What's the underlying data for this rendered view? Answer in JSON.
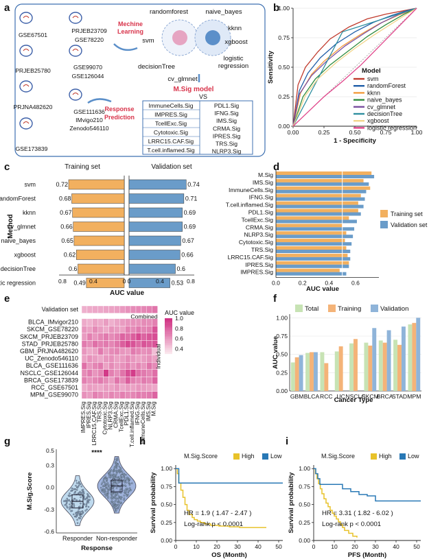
{
  "panel_labels": [
    "a",
    "b",
    "c",
    "d",
    "e",
    "f",
    "g",
    "h",
    "i"
  ],
  "panel_a": {
    "datasets": [
      "GSE67501",
      "PRJEB23709",
      "GSE78220",
      "PRJEB25780",
      "GSE99070",
      "GSE126044",
      "PRJNA482620",
      "GSE111636",
      "IMvigo210",
      "Zenodo546110",
      "GSE173839"
    ],
    "ml_title": [
      "Mechine",
      "Learning"
    ],
    "methods": [
      "randomforest",
      "naive_bayes",
      "svm",
      "kknn",
      "xgboost",
      "decisionTree",
      "logistic",
      "regression",
      "cv_glmnet"
    ],
    "msig_title": "M.Sig model",
    "vs": "VS",
    "rp_title": [
      "Response",
      "Prediction"
    ],
    "sig_left": [
      "ImmuneCells.Sig",
      "IMPRES.Sig",
      "TcellExc.Sig",
      "Cytotoxic.Sig",
      "LRRC15.CAF.Sig",
      "T.cell.inflamed.Sig"
    ],
    "sig_right": [
      "PDL1.Sig",
      "IFNG.Sig",
      "IMS.Sig",
      "CRMA.Sig",
      "IPRES.Sig",
      "TRS.Sig",
      "NLRP3.Sig"
    ],
    "accent": "#d8334a"
  },
  "chart_data": [
    {
      "id": "b",
      "type": "line",
      "title": "",
      "xlabel": "1 - Specificity",
      "ylabel": "Sensitivity",
      "xlim": [
        0,
        1
      ],
      "ylim": [
        0,
        1
      ],
      "xticks": [
        "0.00",
        "0.25",
        "0.50",
        "0.75",
        "1.00"
      ],
      "yticks": [
        "0.00",
        "0.25",
        "0.50",
        "0.75",
        "1.00"
      ],
      "legend_title": "Model",
      "series": [
        {
          "name": "svm",
          "color": "#c0392b",
          "x": [
            0,
            0.04,
            0.1,
            0.2,
            0.3,
            0.45,
            0.6,
            0.75,
            0.9,
            1
          ],
          "y": [
            0,
            0.35,
            0.5,
            0.63,
            0.74,
            0.84,
            0.91,
            0.95,
            0.98,
            1
          ]
        },
        {
          "name": "randomForest",
          "color": "#1f5ea8",
          "x": [
            0,
            0.05,
            0.12,
            0.22,
            0.35,
            0.5,
            0.65,
            0.8,
            0.92,
            1
          ],
          "y": [
            0,
            0.3,
            0.45,
            0.58,
            0.7,
            0.8,
            0.88,
            0.94,
            0.98,
            1
          ]
        },
        {
          "name": "kknn",
          "color": "#f39c3d",
          "x": [
            0,
            0.06,
            0.15,
            0.25,
            0.4,
            0.55,
            0.7,
            0.85,
            1
          ],
          "y": [
            0,
            0.28,
            0.44,
            0.55,
            0.68,
            0.78,
            0.87,
            0.94,
            1
          ]
        },
        {
          "name": "naive_bayes",
          "color": "#2e8b3d",
          "x": [
            0,
            0.08,
            0.18,
            0.3,
            0.45,
            0.6,
            0.75,
            0.9,
            1
          ],
          "y": [
            0,
            0.25,
            0.4,
            0.52,
            0.64,
            0.76,
            0.86,
            0.95,
            1
          ]
        },
        {
          "name": "cv_glmnet",
          "color": "#7a4fa0",
          "x": [
            0,
            0.05,
            0.15,
            0.28,
            0.42,
            0.58,
            0.72,
            0.86,
            1
          ],
          "y": [
            0,
            0.27,
            0.43,
            0.56,
            0.68,
            0.79,
            0.88,
            0.95,
            1
          ]
        },
        {
          "name": "decisionTree",
          "color": "#2f8fa0",
          "x": [
            0,
            0.4,
            1
          ],
          "y": [
            0,
            0.8,
            1
          ]
        },
        {
          "name": "xgboost",
          "color": "#f2d58a",
          "x": [
            0,
            0.1,
            0.2,
            0.35,
            0.5,
            0.65,
            0.8,
            0.92,
            1
          ],
          "y": [
            0,
            0.26,
            0.4,
            0.54,
            0.66,
            0.77,
            0.87,
            0.95,
            1
          ]
        },
        {
          "name": "logistic regression",
          "color": "#e0448a",
          "x": [
            0,
            0.1,
            0.25,
            0.4,
            0.55,
            0.7,
            0.85,
            1
          ],
          "y": [
            0,
            0.1,
            0.25,
            0.38,
            0.52,
            0.68,
            0.84,
            1
          ]
        }
      ]
    },
    {
      "id": "c",
      "type": "bar",
      "orientation": "horizontal-mirrored",
      "xlabel": "AUC value",
      "ylabel": "Method",
      "left_title": "Training set",
      "right_title": "Validation set",
      "left_ticks": [
        "0.8",
        "0.4",
        "0"
      ],
      "right_ticks": [
        "0",
        "0.4",
        "0.8"
      ],
      "categories": [
        "svm",
        "randomForest",
        "kknn",
        "cv_glmnet",
        "naive_bayes",
        "xgboost",
        "decisionTree",
        "logistic regression"
      ],
      "series": [
        {
          "name": "Training set",
          "color": "#f2b05f",
          "values": [
            0.72,
            0.68,
            0.67,
            0.66,
            0.65,
            0.62,
            0.6,
            0.49
          ]
        },
        {
          "name": "Validation set",
          "color": "#6a9cc9",
          "values": [
            0.74,
            0.71,
            0.69,
            0.69,
            0.67,
            0.66,
            0.6,
            0.53
          ]
        }
      ]
    },
    {
      "id": "d",
      "type": "bar",
      "orientation": "horizontal",
      "xlabel": "AUC value",
      "xlim": [
        0,
        0.8
      ],
      "xticks": [
        "0.0",
        "0.2",
        "0.4",
        "0.6"
      ],
      "categories": [
        "M.Sig",
        "IMS.Sig",
        "ImmuneCells.Sig",
        "IFNG.Sig",
        "T.cell.inflamed.Sig",
        "PDL1.Sig",
        "TcellExc.Sig",
        "CRMA.Sig",
        "NLRP3.Sig",
        "Cytotoxic.Sig",
        "TRS.Sig",
        "LRRC15.CAF.Sig",
        "IPRES.Sig",
        "IMPRES.Sig"
      ],
      "series": [
        {
          "name": "Training set",
          "color": "#f2b05f",
          "values": [
            0.72,
            0.66,
            0.71,
            0.64,
            0.62,
            0.62,
            0.55,
            0.5,
            0.53,
            0.52,
            0.53,
            0.54,
            0.55,
            0.48
          ]
        },
        {
          "name": "Validation set",
          "color": "#6a9cc9",
          "values": [
            0.74,
            0.7,
            0.68,
            0.67,
            0.66,
            0.64,
            0.61,
            0.59,
            0.58,
            0.57,
            0.56,
            0.56,
            0.55,
            0.53
          ]
        }
      ]
    },
    {
      "id": "e",
      "type": "heatmap",
      "legend_title": "AUC value",
      "legend_ticks": [
        "1.0",
        "0.8",
        "0.6",
        "0.4"
      ],
      "vmin": 0.3,
      "vmax": 1.0,
      "group_labels": [
        "Combined",
        "Individual"
      ],
      "top_row": "Validation set",
      "rows": [
        "BLCA_IMvigor210",
        "SKCM_GSE78220",
        "SKCM_PRJEB23709",
        "STAD_PRJEB25780",
        "GBM_PRJNA482620",
        "UC_Zenodo546110",
        "BLCA_GSE111636",
        "NSCLC_GSE126044",
        "BRCA_GSE173839",
        "RCC_GSE67501",
        "MPM_GSE99070"
      ],
      "columns": [
        "IMPRES.Sig",
        "IPRES.Sig",
        "LRRC15.CAF.Sig",
        "TRS.Sig",
        "Cytotoxic.Sig",
        "NLRP3.Sig",
        "CRMA.Sig",
        "TcellExc.Sig",
        "PDL1.Sig",
        "T.cell.inflamed.Sig",
        "IFNG.Sig",
        "ImmuneCells.Sig",
        "IMS.Sig",
        "M.Sig"
      ],
      "top_values": [
        0.53,
        0.55,
        0.56,
        0.56,
        0.57,
        0.58,
        0.59,
        0.61,
        0.64,
        0.66,
        0.67,
        0.68,
        0.7,
        0.74
      ],
      "values": [
        [
          0.55,
          0.52,
          0.58,
          0.55,
          0.6,
          0.53,
          0.57,
          0.6,
          0.62,
          0.64,
          0.63,
          0.66,
          0.65,
          0.7
        ],
        [
          0.62,
          0.58,
          0.66,
          0.6,
          0.55,
          0.63,
          0.6,
          0.58,
          0.7,
          0.66,
          0.72,
          0.68,
          0.7,
          0.86
        ],
        [
          0.6,
          0.7,
          0.62,
          0.68,
          0.72,
          0.66,
          0.7,
          0.8,
          0.76,
          0.82,
          0.9,
          0.8,
          0.85,
          0.88
        ],
        [
          0.72,
          0.66,
          0.76,
          0.7,
          0.72,
          0.68,
          0.74,
          0.82,
          0.9,
          0.86,
          0.78,
          0.86,
          0.82,
          0.86
        ],
        [
          0.62,
          0.55,
          0.58,
          0.72,
          0.6,
          0.66,
          0.68,
          0.62,
          0.6,
          0.72,
          0.68,
          0.64,
          0.66,
          0.48
        ],
        [
          0.58,
          0.64,
          0.6,
          0.56,
          0.62,
          0.64,
          0.58,
          0.6,
          0.66,
          0.62,
          0.58,
          0.6,
          0.64,
          0.58
        ],
        [
          0.76,
          0.62,
          0.68,
          0.72,
          0.58,
          0.66,
          0.6,
          0.64,
          0.7,
          0.62,
          0.68,
          0.62,
          0.74,
          0.66
        ],
        [
          0.66,
          0.72,
          0.62,
          0.68,
          0.95,
          0.7,
          0.64,
          0.74,
          0.88,
          0.94,
          0.76,
          0.72,
          0.68,
          0.76
        ],
        [
          0.7,
          0.64,
          0.68,
          0.72,
          0.66,
          0.6,
          0.74,
          0.66,
          0.82,
          0.7,
          0.66,
          0.72,
          0.68,
          0.8
        ],
        [
          0.55,
          0.6,
          0.58,
          0.56,
          0.6,
          0.58,
          0.62,
          0.56,
          0.6,
          0.58,
          0.62,
          0.6,
          0.58,
          0.56
        ],
        [
          0.64,
          0.6,
          0.7,
          0.66,
          0.62,
          0.68,
          0.64,
          0.7,
          0.66,
          0.68,
          0.72,
          0.7,
          0.72,
          0.8
        ]
      ]
    },
    {
      "id": "f",
      "type": "bar",
      "xlabel": "Cancer Type",
      "ylabel": "AUC value",
      "ylim": [
        0,
        1.05
      ],
      "yticks": [
        "0.00",
        "0.25",
        "0.50",
        "0.75",
        "1.00"
      ],
      "categories": [
        "GBM",
        "BLCA",
        "RCC",
        "UC",
        "NSCLC",
        "SKCM",
        "BRCA",
        "STAD",
        "MPM"
      ],
      "series": [
        {
          "name": "Total",
          "color": "#c7e3b4",
          "values": [
            0.39,
            0.52,
            0.53,
            0.54,
            0.65,
            0.66,
            0.69,
            0.7,
            0.91
          ]
        },
        {
          "name": "Training",
          "color": "#f4b378",
          "values": [
            0.46,
            0.53,
            0.38,
            0.61,
            0.71,
            0.62,
            0.66,
            0.63,
            0.93
          ]
        },
        {
          "name": "Validation",
          "color": "#8fb4d9",
          "values": [
            0.49,
            0.53,
            null,
            null,
            null,
            0.86,
            0.83,
            0.88,
            1.0
          ]
        }
      ]
    },
    {
      "id": "g",
      "type": "scatter",
      "subtype": "violin",
      "xlabel": "Response",
      "ylabel": "M.Sig.Score",
      "ylim": [
        -0.62,
        0.52
      ],
      "yticks": [
        "0.5",
        "0.3",
        "0.0",
        "-0.3",
        "-0.6"
      ],
      "significance": "****",
      "categories": [
        "Responder",
        "Non-responder"
      ],
      "series": [
        {
          "name": "Responder",
          "color": "#a9cde8",
          "mean": -0.19,
          "q1": -0.28,
          "median": -0.19,
          "q3": -0.1,
          "min": -0.52,
          "max": 0.16,
          "n": 150
        },
        {
          "name": "Non-responder",
          "color": "#7f9ad0",
          "mean": 0.02,
          "q1": -0.06,
          "median": 0.02,
          "q3": 0.1,
          "min": -0.35,
          "max": 0.42,
          "n": 320
        }
      ]
    },
    {
      "id": "h",
      "type": "line",
      "subtype": "kaplan-meier",
      "legend_title": "M.Sig.Score",
      "xlabel": "OS (Month)",
      "ylabel": "Survival probability",
      "xlim": [
        0,
        52
      ],
      "ylim": [
        0,
        1.05
      ],
      "xticks": [
        "0",
        "10",
        "20",
        "30",
        "40",
        "50"
      ],
      "yticks": [
        "0.00",
        "0.25",
        "0.50",
        "0.75",
        "1.00"
      ],
      "annotations": [
        "HR = 1.9 ( 1.47 - 2.47 )",
        "Log-rank p < 0.0001"
      ],
      "series": [
        {
          "name": "High",
          "color": "#e8c22a",
          "x": [
            0,
            0.8,
            1.5,
            2.5,
            3.5,
            4.5,
            5.5,
            6.5,
            8,
            9,
            10.5,
            12,
            14,
            17,
            21,
            26,
            31,
            37,
            44
          ],
          "y": [
            1,
            0.93,
            0.8,
            0.7,
            0.6,
            0.5,
            0.42,
            0.36,
            0.32,
            0.29,
            0.27,
            0.25,
            0.23,
            0.21,
            0.2,
            0.19,
            0.18,
            0.18,
            0.18
          ]
        },
        {
          "name": "Low",
          "color": "#2878b5",
          "x": [
            0,
            1.5,
            52
          ],
          "y": [
            1,
            0.8,
            0.8
          ]
        }
      ]
    },
    {
      "id": "i",
      "type": "line",
      "subtype": "kaplan-meier",
      "legend_title": "M.Sig.Score",
      "xlabel": "PFS (Month)",
      "ylabel": "Survival probability",
      "xlim": [
        0,
        52
      ],
      "ylim": [
        0,
        1.05
      ],
      "xticks": [
        "0",
        "10",
        "20",
        "30",
        "40",
        "50"
      ],
      "yticks": [
        "0.00",
        "0.25",
        "0.50",
        "0.75",
        "1.00"
      ],
      "annotations": [
        "HR = 3.31 ( 1.82 - 6.02 )",
        "Log-rank p < 0.0001"
      ],
      "series": [
        {
          "name": "High",
          "color": "#e8c22a",
          "x": [
            0,
            0.8,
            1.6,
            2.4,
            3.2,
            4,
            5,
            6,
            7,
            8,
            9,
            10,
            11,
            12,
            13,
            14,
            15,
            17,
            19,
            21
          ],
          "y": [
            1,
            0.93,
            0.86,
            0.79,
            0.72,
            0.65,
            0.58,
            0.52,
            0.47,
            0.42,
            0.38,
            0.34,
            0.3,
            0.26,
            0.22,
            0.18,
            0.14,
            0.1,
            0.06,
            0.04
          ]
        },
        {
          "name": "Low",
          "color": "#2878b5",
          "x": [
            0,
            1,
            2,
            3,
            12,
            14,
            16,
            18,
            20,
            22,
            26,
            30,
            40,
            52
          ],
          "y": [
            1,
            0.93,
            0.86,
            0.78,
            0.78,
            0.72,
            0.72,
            0.68,
            0.68,
            0.64,
            0.62,
            0.55,
            0.55,
            0.55
          ]
        }
      ]
    }
  ]
}
